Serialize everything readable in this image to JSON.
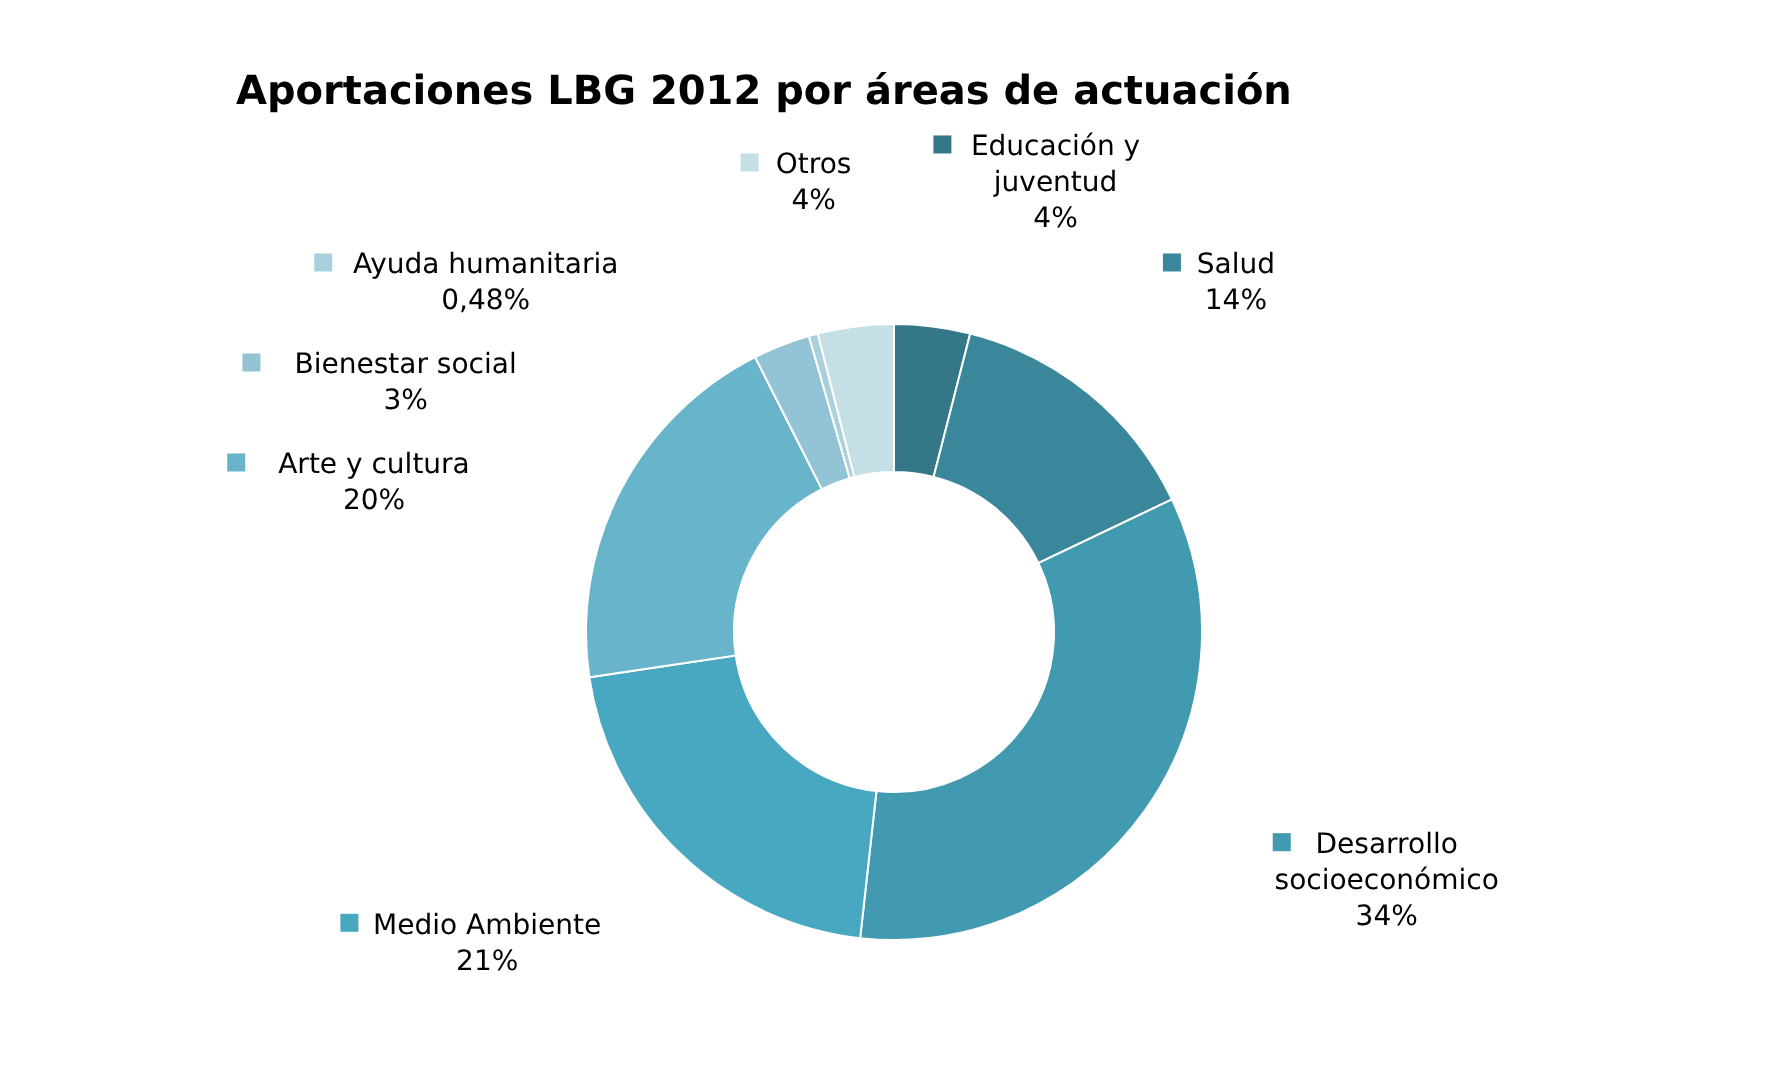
{
  "chart_data": {
    "type": "donut",
    "title": "Aportaciones LBG 2012 por áreas de actuación",
    "categories": [
      "Educación y juventud",
      "Salud",
      "Desarrollo socioeconómico",
      "Medio Ambiente",
      "Arte y cultura",
      "Bienestar social",
      "Ayuda humanitaria",
      "Otros"
    ],
    "values": [
      4,
      14,
      34,
      21,
      20,
      3,
      0.48,
      4
    ],
    "value_labels": [
      "4%",
      "14%",
      "34%",
      "21%",
      "20%",
      "3%",
      "0,48%",
      "4%"
    ],
    "colors": [
      "#337788",
      "#3a879b",
      "#419aaf",
      "#48a8c2",
      "#68b4cb",
      "#93c4d5",
      "#a9d0dd",
      "#c5dfe6"
    ],
    "legend": "top left"
  }
}
